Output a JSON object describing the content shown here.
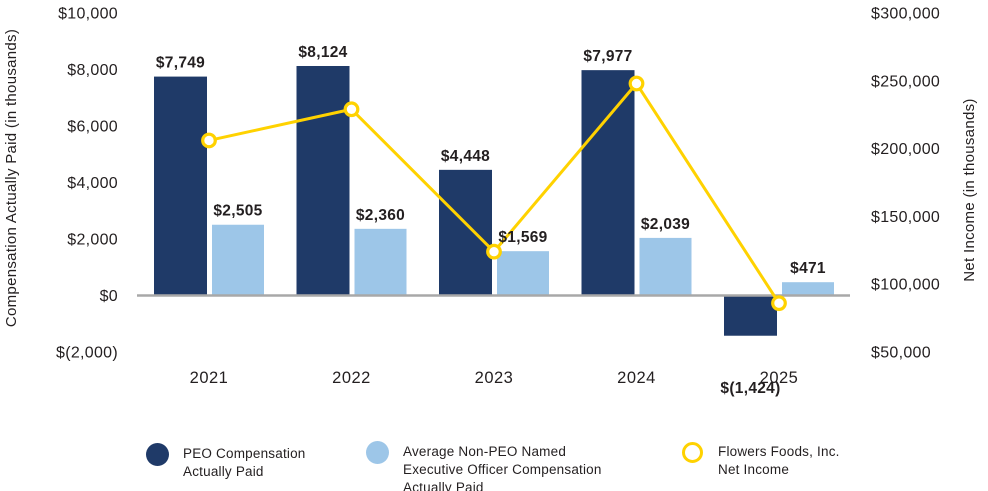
{
  "chart_data": {
    "type": "bar",
    "subtype": "grouped-bars-with-line-overlay",
    "categories": [
      "2021",
      "2022",
      "2023",
      "2024",
      "2025"
    ],
    "series": [
      {
        "name": "PEO Compensation Actually Paid",
        "type": "bar",
        "axis": "left",
        "color": "#1f3a68",
        "values": [
          7749,
          8124,
          4448,
          7977,
          -1424
        ],
        "labels": [
          "$7,749",
          "$8,124",
          "$4,448",
          "$7,977",
          "$(1,424)"
        ]
      },
      {
        "name": "Average Non-PEO Named Executive Officer Compensation Actually Paid",
        "type": "bar",
        "axis": "left",
        "color": "#9dc6e8",
        "values": [
          2505,
          2360,
          1569,
          2039,
          471
        ],
        "labels": [
          "$2,505",
          "$2,360",
          "$1,569",
          "$2,039",
          "$471"
        ]
      },
      {
        "name": "Flowers Foods, Inc. Net Income",
        "type": "line",
        "axis": "right",
        "color": "#ffd200",
        "marker": "open-circle",
        "values_estimated_from_gridlines": true,
        "values": [
          206000,
          229000,
          124000,
          248000,
          86000
        ]
      }
    ],
    "left_axis": {
      "title": "Compensation Actually Paid (in thousands)",
      "min": -2000,
      "max": 10000,
      "ticks": [
        10000,
        8000,
        6000,
        4000,
        2000,
        0,
        -2000
      ],
      "tick_labels": [
        "$10,000",
        "$8,000",
        "$6,000",
        "$4,000",
        "$2,000",
        "$0",
        "$(2,000)"
      ]
    },
    "right_axis": {
      "title": "Net Income (in thousands)",
      "min": 50000,
      "max": 300000,
      "ticks": [
        300000,
        250000,
        200000,
        150000,
        100000,
        50000
      ],
      "tick_labels": [
        "$300,000",
        "$250,000",
        "$200,000",
        "$150,000",
        "$100,000",
        "$50,000"
      ]
    },
    "grid": false,
    "baseline_color": "#a8a8a8",
    "legend_position": "bottom"
  },
  "legend": {
    "items": [
      {
        "swatch": "filled-circle",
        "color": "#1f3a68",
        "label": "PEO Compensation\nActually Paid"
      },
      {
        "swatch": "filled-circle",
        "color": "#9dc6e8",
        "label": "Average Non-PEO Named\nExecutive Officer Compensation\nActually Paid"
      },
      {
        "swatch": "open-circle",
        "color": "#ffd200",
        "label": "Flowers Foods, Inc.\nNet Income"
      }
    ]
  }
}
